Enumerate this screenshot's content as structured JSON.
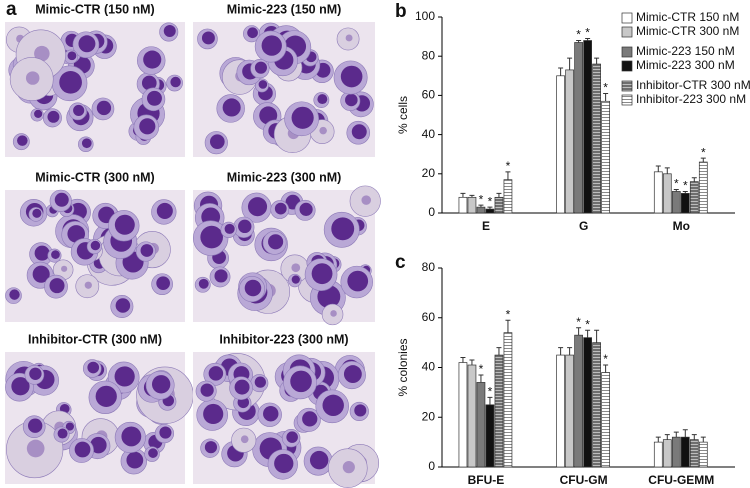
{
  "panel_a": {
    "label": "a",
    "images": [
      {
        "caption": "Mimic-CTR (150 nM)"
      },
      {
        "caption": "Mimic-223 (150 nM)"
      },
      {
        "caption": "Mimic-CTR (300 nM)"
      },
      {
        "caption": "Mimic-223 (300 nM)"
      },
      {
        "caption": "Inhibitor-CTR (300 nM)"
      },
      {
        "caption": "Inhibitor-223 (300 nM)"
      }
    ]
  },
  "chart_data": [
    {
      "type": "bar",
      "panel_label": "b",
      "y_label": "% cells",
      "categories": [
        "E",
        "G",
        "Mo"
      ],
      "ylim": [
        0,
        100
      ],
      "yticks": [
        0,
        20,
        40,
        60,
        80,
        100
      ],
      "legend": "top-right",
      "series": [
        {
          "name": "Mimic-CTR 150 nM",
          "color": "#ffffff",
          "values": [
            8,
            70,
            21
          ],
          "errors": [
            2,
            4,
            3
          ],
          "significance": [
            null,
            null,
            null
          ]
        },
        {
          "name": "Mimic-CTR 300 nM",
          "color": "#c8c8c8",
          "values": [
            8,
            73,
            20
          ],
          "errors": [
            1,
            6,
            3
          ],
          "significance": [
            null,
            null,
            null
          ]
        },
        {
          "name": "Mimic-223 150 nM",
          "color": "#7a7a7a",
          "values": [
            3,
            87,
            11
          ],
          "errors": [
            1,
            1,
            1
          ],
          "significance": [
            "*",
            "*",
            "*"
          ]
        },
        {
          "name": "Mimic-223 300 nM",
          "color": "#111111",
          "values": [
            2,
            88,
            10
          ],
          "errors": [
            1,
            1,
            1
          ],
          "significance": [
            "*",
            "*",
            "*"
          ]
        },
        {
          "name": "Inhibitor-CTR 300 nM",
          "color": "#6e6e6e",
          "hatch": true,
          "values": [
            8,
            76,
            16
          ],
          "errors": [
            2,
            3,
            2
          ],
          "significance": [
            null,
            null,
            null
          ]
        },
        {
          "name": "Inhibitor-223 300 nM",
          "color": "#e6e6e6",
          "hatch": true,
          "values": [
            17,
            57,
            26
          ],
          "errors": [
            4,
            4,
            2
          ],
          "significance": [
            "*",
            "*",
            "*"
          ]
        }
      ]
    },
    {
      "type": "bar",
      "panel_label": "c",
      "y_label": "% colonies",
      "categories": [
        "BFU-E",
        "CFU-GM",
        "CFU-GEMM"
      ],
      "ylim": [
        0,
        80
      ],
      "yticks": [
        0,
        20,
        40,
        60,
        80
      ],
      "series": [
        {
          "color": "#ffffff",
          "values": [
            42,
            45,
            10
          ],
          "errors": [
            2,
            3,
            2
          ],
          "significance": [
            null,
            null,
            null
          ]
        },
        {
          "color": "#c8c8c8",
          "values": [
            41,
            45,
            11
          ],
          "errors": [
            2,
            3,
            2
          ],
          "significance": [
            null,
            null,
            null
          ]
        },
        {
          "color": "#7a7a7a",
          "values": [
            34,
            53,
            12
          ],
          "errors": [
            3,
            3,
            2
          ],
          "significance": [
            "*",
            "*",
            null
          ]
        },
        {
          "color": "#111111",
          "values": [
            25,
            52,
            12
          ],
          "errors": [
            3,
            3,
            3
          ],
          "significance": [
            "*",
            "*",
            null
          ]
        },
        {
          "color": "#6e6e6e",
          "hatch": true,
          "values": [
            45,
            50,
            11
          ],
          "errors": [
            3,
            5,
            2
          ],
          "significance": [
            null,
            null,
            null
          ]
        },
        {
          "color": "#e6e6e6",
          "hatch": true,
          "values": [
            54,
            38,
            10
          ],
          "errors": [
            5,
            3,
            2
          ],
          "significance": [
            "*",
            "*",
            null
          ]
        }
      ]
    }
  ]
}
